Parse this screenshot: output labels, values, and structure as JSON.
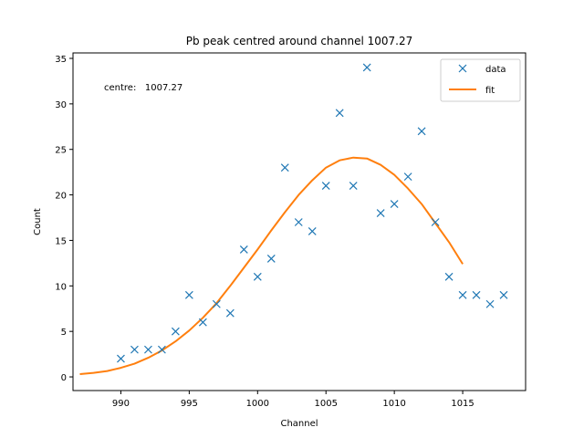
{
  "chart_data": {
    "type": "scatter",
    "title": "Pb peak centred around channel 1007.27",
    "xlabel": "Channel",
    "ylabel": "Count",
    "xlim": [
      986.5,
      1019.6
    ],
    "ylim": [
      -1.5,
      35.6
    ],
    "xticks": [
      990,
      995,
      1000,
      1005,
      1010,
      1015
    ],
    "yticks": [
      0,
      5,
      10,
      15,
      20,
      25,
      30,
      35
    ],
    "grid": false,
    "legend_placement": "top-right",
    "annotation": "centre:   1007.27",
    "series": [
      {
        "name": "data",
        "marker": "x",
        "color": "#1f77b4",
        "x": [
          990,
          991,
          992,
          993,
          994,
          995,
          996,
          997,
          998,
          999,
          1000,
          1001,
          1002,
          1003,
          1004,
          1005,
          1006,
          1007,
          1008,
          1009,
          1010,
          1011,
          1012,
          1013,
          1014,
          1015,
          1016,
          1017,
          1018
        ],
        "y": [
          2,
          3,
          3,
          3,
          5,
          9,
          6,
          8,
          7,
          14,
          11,
          13,
          23,
          17,
          16,
          21,
          29,
          21,
          34,
          18,
          19,
          22,
          27,
          17,
          11,
          9,
          9,
          8,
          9
        ]
      },
      {
        "name": "fit",
        "line": "solid",
        "color": "#ff7f0e",
        "x": [
          987,
          988,
          989,
          990,
          991,
          992,
          993,
          994,
          995,
          996,
          997,
          998,
          999,
          1000,
          1001,
          1002,
          1003,
          1004,
          1005,
          1006,
          1007,
          1008,
          1009,
          1010,
          1011,
          1012,
          1013,
          1014,
          1015
        ],
        "y": [
          0.3,
          0.45,
          0.65,
          1.0,
          1.45,
          2.1,
          2.9,
          3.9,
          5.1,
          6.5,
          8.1,
          10.0,
          12.0,
          14.0,
          16.1,
          18.1,
          20.0,
          21.6,
          23.0,
          23.8,
          24.1,
          24.0,
          23.3,
          22.2,
          20.7,
          19.0,
          16.9,
          14.8,
          12.4
        ]
      }
    ]
  }
}
